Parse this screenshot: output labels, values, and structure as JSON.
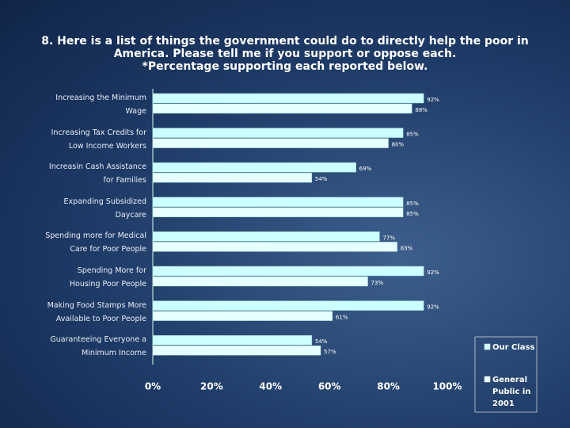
{
  "chart_data": {
    "type": "hbar",
    "title": "8. Here is a list of things the government could do to directly help the poor in America. Please tell me if you support or oppose each.",
    "subtitle": "*Percentage supporting each reported below.",
    "categories": [
      "Increasing the Minimum Wage",
      "Increasing Tax Credits for Low Income Workers",
      "Increasin Cash Assistance for Families",
      "Expanding Subsidized Daycare",
      "Spending more for Medical Care for Poor People",
      "Spending More for Housing Poor People",
      "Making Food Stamps More Available to Poor People",
      "Guaranteeing Everyone a Minimum Income"
    ],
    "series": [
      {
        "name": "Our Class",
        "color": "#ccffff",
        "values": [
          92,
          85,
          69,
          85,
          77,
          92,
          92,
          54
        ],
        "value_labels": [
          "92%",
          "85%",
          "69%",
          "85%",
          "77%",
          "92%",
          "92%",
          "54%"
        ]
      },
      {
        "name": "General Public in 2001",
        "color": "#e6ffff",
        "values": [
          88,
          80,
          54,
          85,
          83,
          73,
          61,
          57
        ],
        "value_labels": [
          "88%",
          "80%",
          "54%",
          "85%",
          "83%",
          "73%",
          "61%",
          "57%"
        ]
      }
    ],
    "xlim": [
      0,
      100
    ],
    "xticks": [
      {
        "value": 0,
        "label": "0%"
      },
      {
        "value": 20,
        "label": "20%"
      },
      {
        "value": 40,
        "label": "40%"
      },
      {
        "value": 60,
        "label": "60%"
      },
      {
        "value": 80,
        "label": "80%"
      },
      {
        "value": 100,
        "label": "100%"
      }
    ],
    "legend": "right"
  }
}
